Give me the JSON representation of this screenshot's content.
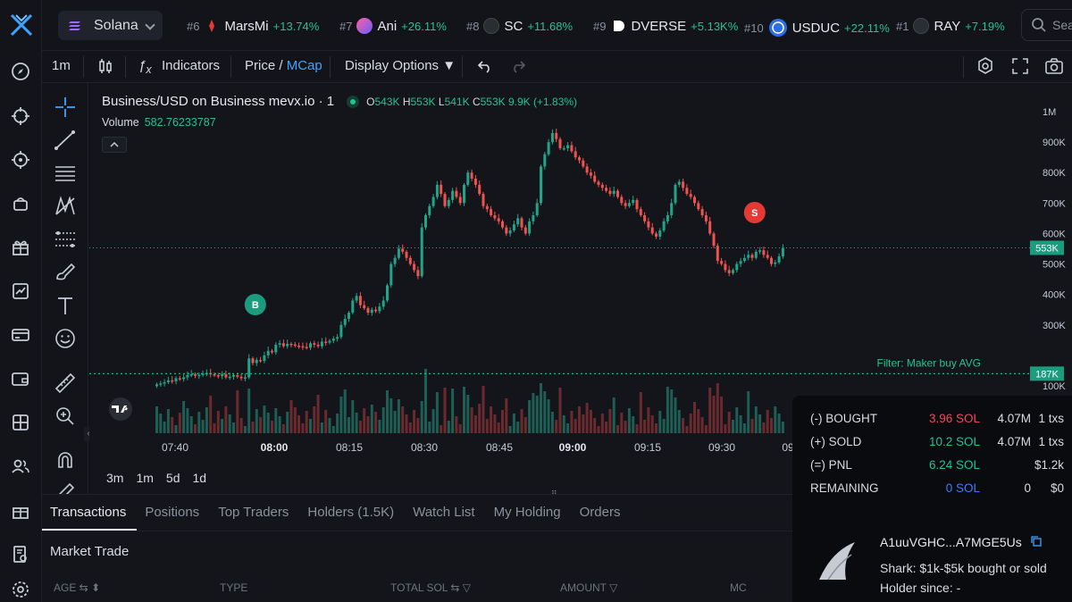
{
  "header": {
    "chain_label": "Solana",
    "tickers": [
      {
        "rank": "#6",
        "name": "MarsMi",
        "change": "+13.74%",
        "icon": "marsmi-icon"
      },
      {
        "rank": "#7",
        "name": "Ani",
        "change": "+26.11%",
        "icon": "ani-icon"
      },
      {
        "rank": "#8",
        "name": "SC",
        "change": "+11.68%",
        "icon": "sc-icon"
      },
      {
        "rank": "#9",
        "name": "DVERSE",
        "change": "+5.13K%",
        "icon": "dverse-icon"
      },
      {
        "rank": "#10",
        "name": "USDUC",
        "change": "+22.11%",
        "icon": "usduc-icon"
      },
      {
        "rank": "#1",
        "name": "RAY",
        "change": "+7.19%",
        "icon": "ray-icon"
      }
    ],
    "search_placeholder": "Sear"
  },
  "chart_toolbar": {
    "interval": "1m",
    "indicators_label": "Indicators",
    "price_label": "Price",
    "slash": "/",
    "mcap_label": "MCap",
    "display_options_label": "Display Options ▼"
  },
  "chart": {
    "title": "Business/USD on Business mevx.io · 1",
    "ohlc": {
      "o": "543K",
      "h": "553K",
      "l": "541K",
      "c": "553K",
      "change": "9.9K (+1.83%)"
    },
    "volume_label": "Volume",
    "volume_value": "582.76233787",
    "current_price_tag": "553K",
    "filter_label": "Filter: Maker buy AVG",
    "filter_tag": "187K",
    "buy_marker": "B",
    "sell_marker": "S",
    "timeframes": [
      "3m",
      "1m",
      "5d",
      "1d"
    ]
  },
  "chart_data": {
    "type": "candlestick",
    "y_axis_ticks": [
      "1M",
      "900K",
      "800K",
      "700K",
      "600K",
      "500K",
      "400K",
      "300K",
      "100K"
    ],
    "x_axis_ticks": [
      "07:40",
      "08:00",
      "08:15",
      "08:30",
      "08:45",
      "09:00",
      "09:15",
      "09:30",
      "09"
    ],
    "ylim": [
      0,
      1000000
    ],
    "close_series_k": [
      105,
      108,
      112,
      118,
      115,
      125,
      122,
      128,
      135,
      138,
      133,
      136,
      140,
      142,
      138,
      135,
      132,
      138,
      128,
      130,
      135,
      130,
      125,
      128,
      190,
      175,
      185,
      182,
      200,
      215,
      210,
      235,
      240,
      230,
      238,
      236,
      232,
      230,
      228,
      225,
      240,
      235,
      230,
      245,
      242,
      248,
      255,
      260,
      300,
      320,
      340,
      380,
      395,
      365,
      355,
      340,
      350,
      345,
      360,
      380,
      430,
      500,
      520,
      550,
      540,
      520,
      500,
      480,
      460,
      620,
      660,
      690,
      720,
      760,
      730,
      690,
      710,
      740,
      720,
      700,
      760,
      800,
      780,
      760,
      730,
      690,
      680,
      660,
      650,
      640,
      620,
      600,
      610,
      630,
      650,
      620,
      600,
      640,
      660,
      700,
      820,
      860,
      900,
      930,
      910,
      880,
      880,
      890,
      870,
      850,
      840,
      820,
      800,
      790,
      770,
      760,
      750,
      740,
      730,
      740,
      720,
      700,
      690,
      700,
      710,
      680,
      660,
      640,
      620,
      600,
      590,
      610,
      640,
      660,
      700,
      760,
      770,
      750,
      730,
      720,
      700,
      680,
      660,
      640,
      600,
      560,
      510,
      500,
      480,
      470,
      480,
      500,
      510,
      520,
      530,
      520,
      540,
      545,
      530,
      520,
      500,
      505,
      525,
      553
    ]
  },
  "bottom": {
    "tabs": [
      "Transactions",
      "Positions",
      "Top Traders",
      "Holders (1.5K)",
      "Watch List",
      "My Holding",
      "Orders"
    ],
    "section_title": "Market Trade",
    "columns": [
      "AGE ⇆ ⬍",
      "TYPE",
      "TOTAL SOL ⇆ ▽",
      "AMOUNT ▽",
      "MC"
    ]
  },
  "pnl": {
    "rows": [
      {
        "label": "(-) BOUGHT",
        "value": "3.96 SOL",
        "tokens": "4.07M",
        "count": "1 txs",
        "color": "#f6465d"
      },
      {
        "label": "(+) SOLD",
        "value": "10.2 SOL",
        "tokens": "4.07M",
        "count": "1 txs",
        "color": "#21c48d"
      },
      {
        "label": "(=) PNL",
        "value": "6.24 SOL",
        "tokens": "",
        "count": "$1.2k",
        "color": "#21c48d"
      },
      {
        "label": "REMAINING",
        "value": "0 SOL",
        "tokens": "0",
        "count": "$0",
        "color": "#3d7cff"
      }
    ],
    "address": "A1uuVGHC...A7MGE5Us",
    "shark_text": "Shark: $1k-$5k bought or sold",
    "holder_since": "Holder since: -"
  },
  "colors": {
    "up": "#21a58a",
    "down": "#ef5350",
    "accent": "#3ea3ff",
    "green": "#21c48d",
    "red": "#f6465d"
  }
}
